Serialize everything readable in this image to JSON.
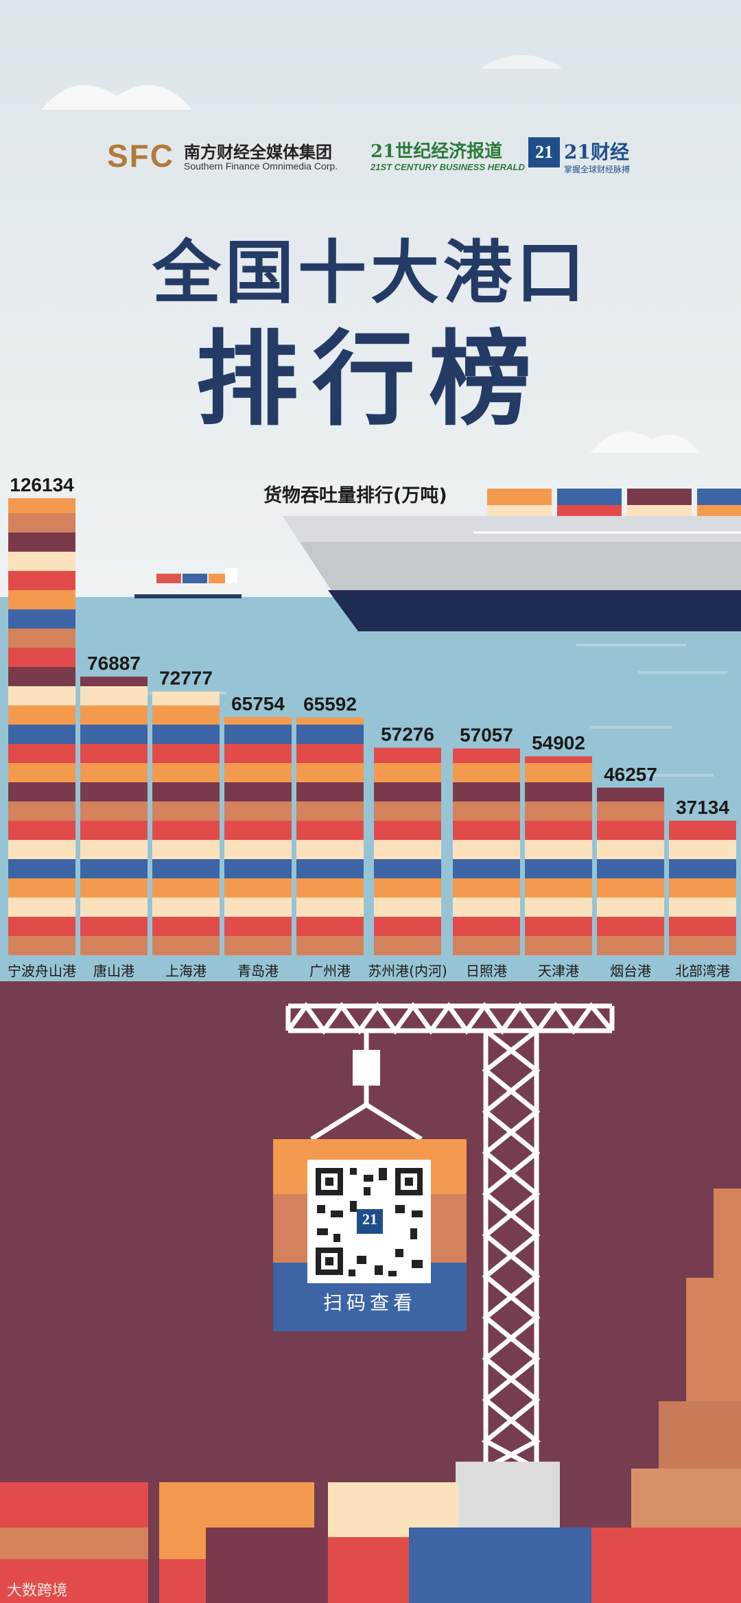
{
  "header": {
    "sfc_mark": "SFC",
    "sfc_name_cn": "南方财经全媒体集团",
    "sfc_name_en": "Southern Finance Omnimedia Corp.",
    "cbh_name_cn": "21世纪经济报道",
    "cbh_name_en": "21ST CENTURY BUSINESS HERALD",
    "c21_badge": "21",
    "c21_name_cn": "21财经",
    "c21_slogan": "掌握全球财经脉搏"
  },
  "title_line1": "全国十大港口",
  "title_line2": "排行榜",
  "chart_data": {
    "type": "bar",
    "title": "货物吞吐量排行(万吨)",
    "categories": [
      "宁波舟山港",
      "唐山港",
      "上海港",
      "青岛港",
      "广州港",
      "苏州港(内河)",
      "日照港",
      "天津港",
      "烟台港",
      "北部湾港"
    ],
    "values": [
      126134,
      76887,
      72777,
      65754,
      65592,
      57276,
      57057,
      54902,
      46257,
      37134
    ],
    "ylim": [
      0,
      130000
    ],
    "grid": false,
    "legend": "none"
  },
  "qr": {
    "label": "扫码查看",
    "badge": "21"
  },
  "watermark": "大数跨境",
  "colors": {
    "navy": "#243b66",
    "red": "#e14c4b",
    "orange": "#f39a4f",
    "cream": "#fbe2bd",
    "blue": "#3d64a4",
    "plum": "#7a3a4c",
    "terracotta": "#d4825c",
    "maroon_bg": "#763c4f",
    "water": "#97c4d4"
  }
}
